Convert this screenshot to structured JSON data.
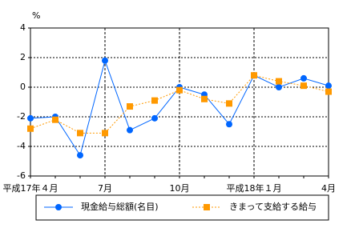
{
  "chart_data": {
    "type": "line",
    "y_unit": "%",
    "categories": [
      "平成17年４月",
      null,
      null,
      "7月",
      null,
      null,
      "10月",
      null,
      null,
      "平成18年１月",
      null,
      null,
      "4月"
    ],
    "series": [
      {
        "name": "現金給与総額(名目)",
        "color": "#0066ff",
        "marker": "circle",
        "line_style": "solid",
        "values": [
          -2.1,
          -2.0,
          -4.6,
          1.8,
          -2.9,
          -2.1,
          0.0,
          -0.5,
          -2.5,
          0.8,
          0.0,
          0.6,
          0.1
        ]
      },
      {
        "name": "きまって支給する給与",
        "color": "#ff9900",
        "marker": "square",
        "line_style": "dotted",
        "values": [
          -2.8,
          -2.2,
          -3.1,
          -3.1,
          -1.3,
          -0.9,
          -0.2,
          -0.8,
          -1.1,
          0.8,
          0.4,
          0.1,
          -0.3
        ]
      }
    ],
    "ylim": [
      -6,
      4
    ],
    "yticks": [
      -6,
      -4,
      -2,
      0,
      2,
      4
    ],
    "grid": true
  }
}
